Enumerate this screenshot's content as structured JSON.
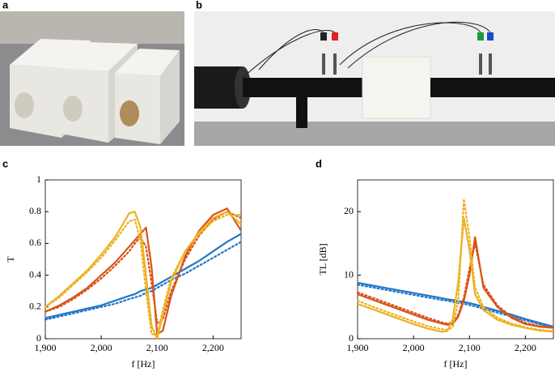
{
  "panel_labels": [
    "a",
    "b",
    "c",
    "d"
  ],
  "chart_data": [
    {
      "type": "line",
      "ylabel": "T",
      "xlabel": "f [Hz]",
      "x": [
        1900,
        1925,
        1950,
        1975,
        2000,
        2025,
        2050,
        2060,
        2070,
        2080,
        2090,
        2100,
        2110,
        2125,
        2150,
        2175,
        2200,
        2225,
        2250
      ],
      "xlim": [
        1900,
        2250
      ],
      "xticks": [
        {
          "value": 1900,
          "label": "1,900"
        },
        {
          "value": 2000,
          "label": "2,000"
        },
        {
          "value": 2100,
          "label": "2,100"
        },
        {
          "value": 2200,
          "label": "2,200"
        }
      ],
      "ylim": [
        0,
        1
      ],
      "yticks": [
        0,
        0.2,
        0.4,
        0.6,
        0.8,
        1
      ],
      "series": [
        {
          "color": "#1f78c8",
          "style": "solid",
          "values": [
            0.13,
            0.15,
            0.17,
            0.19,
            0.21,
            0.24,
            0.27,
            0.28,
            0.3,
            0.31,
            0.32,
            0.34,
            0.36,
            0.39,
            0.44,
            0.49,
            0.55,
            0.61,
            0.66
          ]
        },
        {
          "color": "#1f78c8",
          "style": "dotted",
          "values": [
            0.12,
            0.14,
            0.16,
            0.18,
            0.2,
            0.22,
            0.25,
            0.26,
            0.27,
            0.29,
            0.3,
            0.32,
            0.34,
            0.37,
            0.41,
            0.46,
            0.51,
            0.56,
            0.61
          ]
        },
        {
          "color": "#d95319",
          "style": "solid",
          "values": [
            0.17,
            0.21,
            0.26,
            0.32,
            0.4,
            0.48,
            0.58,
            0.62,
            0.66,
            0.7,
            0.45,
            0.03,
            0.05,
            0.27,
            0.52,
            0.68,
            0.78,
            0.82,
            0.68
          ]
        },
        {
          "color": "#d95319",
          "style": "dotted",
          "values": [
            0.17,
            0.2,
            0.25,
            0.31,
            0.38,
            0.46,
            0.55,
            0.6,
            0.64,
            0.58,
            0.35,
            0.1,
            0.12,
            0.3,
            0.5,
            0.65,
            0.75,
            0.8,
            0.76
          ]
        },
        {
          "color": "#edb120",
          "style": "solid",
          "values": [
            0.2,
            0.27,
            0.35,
            0.43,
            0.53,
            0.64,
            0.79,
            0.8,
            0.7,
            0.4,
            0.08,
            0.0,
            0.15,
            0.36,
            0.55,
            0.67,
            0.76,
            0.8,
            0.72
          ]
        },
        {
          "color": "#edb120",
          "style": "dotted",
          "values": [
            0.2,
            0.26,
            0.34,
            0.42,
            0.51,
            0.62,
            0.74,
            0.75,
            0.62,
            0.3,
            0.03,
            0.02,
            0.18,
            0.38,
            0.55,
            0.66,
            0.74,
            0.78,
            0.78
          ]
        }
      ]
    },
    {
      "type": "line",
      "ylabel": "TL [dB]",
      "xlabel": "f [Hz]",
      "x": [
        1900,
        1925,
        1950,
        1975,
        2000,
        2025,
        2050,
        2060,
        2070,
        2080,
        2090,
        2100,
        2110,
        2125,
        2150,
        2175,
        2200,
        2225,
        2250
      ],
      "xlim": [
        1900,
        2250
      ],
      "xticks": [
        {
          "value": 1900,
          "label": "1,900"
        },
        {
          "value": 2000,
          "label": "2,000"
        },
        {
          "value": 2100,
          "label": "2,100"
        },
        {
          "value": 2200,
          "label": "2,200"
        }
      ],
      "ylim": [
        0,
        25
      ],
      "yticks": [
        0,
        10,
        20
      ],
      "series": [
        {
          "color": "#1f78c8",
          "style": "solid",
          "values": [
            8.8,
            8.4,
            8,
            7.6,
            7.2,
            6.8,
            6.4,
            6.2,
            6.1,
            5.9,
            5.8,
            5.6,
            5.4,
            5,
            4.4,
            3.8,
            3.1,
            2.5,
            1.9
          ]
        },
        {
          "color": "#1f78c8",
          "style": "dotted",
          "values": [
            8.5,
            8.1,
            7.7,
            7.3,
            6.9,
            6.5,
            6.1,
            6.0,
            5.8,
            5.6,
            5.5,
            5.3,
            5.1,
            4.7,
            4.1,
            3.5,
            2.9,
            2.3,
            1.8
          ]
        },
        {
          "color": "#d95319",
          "style": "solid",
          "values": [
            7,
            6.2,
            5.4,
            4.6,
            3.8,
            3,
            2.4,
            2.2,
            2.3,
            3.5,
            6,
            10,
            16,
            8,
            5,
            3.3,
            2.3,
            1.9,
            1.7
          ]
        },
        {
          "color": "#d95319",
          "style": "dotted",
          "values": [
            7.3,
            6.5,
            5.7,
            4.9,
            4.1,
            3.3,
            2.6,
            2.4,
            2.5,
            3.8,
            6.5,
            11,
            15,
            8.5,
            5.2,
            3.5,
            2.5,
            2,
            1.8
          ]
        },
        {
          "color": "#edb120",
          "style": "solid",
          "values": [
            5.5,
            4.7,
            3.9,
            3.1,
            2.3,
            1.6,
            1.1,
            1.2,
            3,
            9,
            19,
            14,
            7,
            4.5,
            3,
            2.2,
            1.7,
            1.3,
            1.1
          ]
        },
        {
          "color": "#edb120",
          "style": "dotted",
          "values": [
            6,
            5.1,
            4.3,
            3.5,
            2.7,
            2,
            1.5,
            1.4,
            1.8,
            6,
            22,
            16,
            8,
            5,
            3.3,
            2.4,
            1.8,
            1.4,
            1.2
          ]
        }
      ]
    }
  ]
}
